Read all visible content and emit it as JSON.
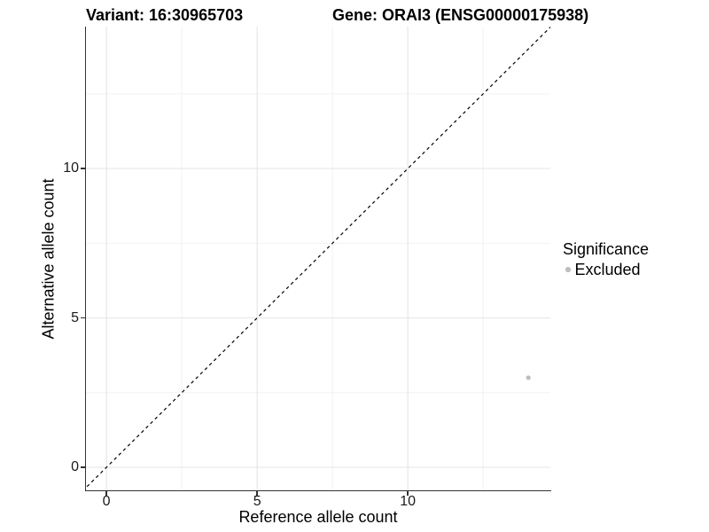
{
  "figure": {
    "titles": {
      "variant": "Variant: 16:30965703",
      "gene": "Gene: ORAI3 (ENSG00000175938)"
    }
  },
  "legend": {
    "title": "Significance",
    "items": [
      {
        "label": "Excluded",
        "color": "#bdbdbd"
      }
    ]
  },
  "chart_data": {
    "type": "scatter",
    "title": "Variant: 16:30965703 / Gene: ORAI3 (ENSG00000175938)",
    "xlabel": "Reference allele count",
    "ylabel": "Alternative allele count",
    "xlim": [
      -0.68,
      14.73
    ],
    "ylim": [
      -0.77,
      14.75
    ],
    "x_major_ticks": [
      0,
      5,
      10
    ],
    "y_major_ticks": [
      0,
      5,
      10
    ],
    "x_minor_gridlines": [
      2.5,
      7.5,
      12.5
    ],
    "y_minor_gridlines": [
      2.5,
      7.5,
      12.5
    ],
    "grid": "major and minor, light gray on white",
    "legend_position": "right",
    "series": [
      {
        "name": "Excluded",
        "color": "#bdbdbd",
        "point_radius": 2.6,
        "points": [
          {
            "x": 14,
            "y": 3
          }
        ]
      }
    ],
    "reference_line": {
      "description": "identity line y = x",
      "slope": 1,
      "intercept": 0,
      "style": "dashed",
      "color": "#000000"
    },
    "colors": {
      "axis": "#333333",
      "grid_major": "#e7e7e7",
      "grid_minor": "#f2f2f2"
    }
  }
}
